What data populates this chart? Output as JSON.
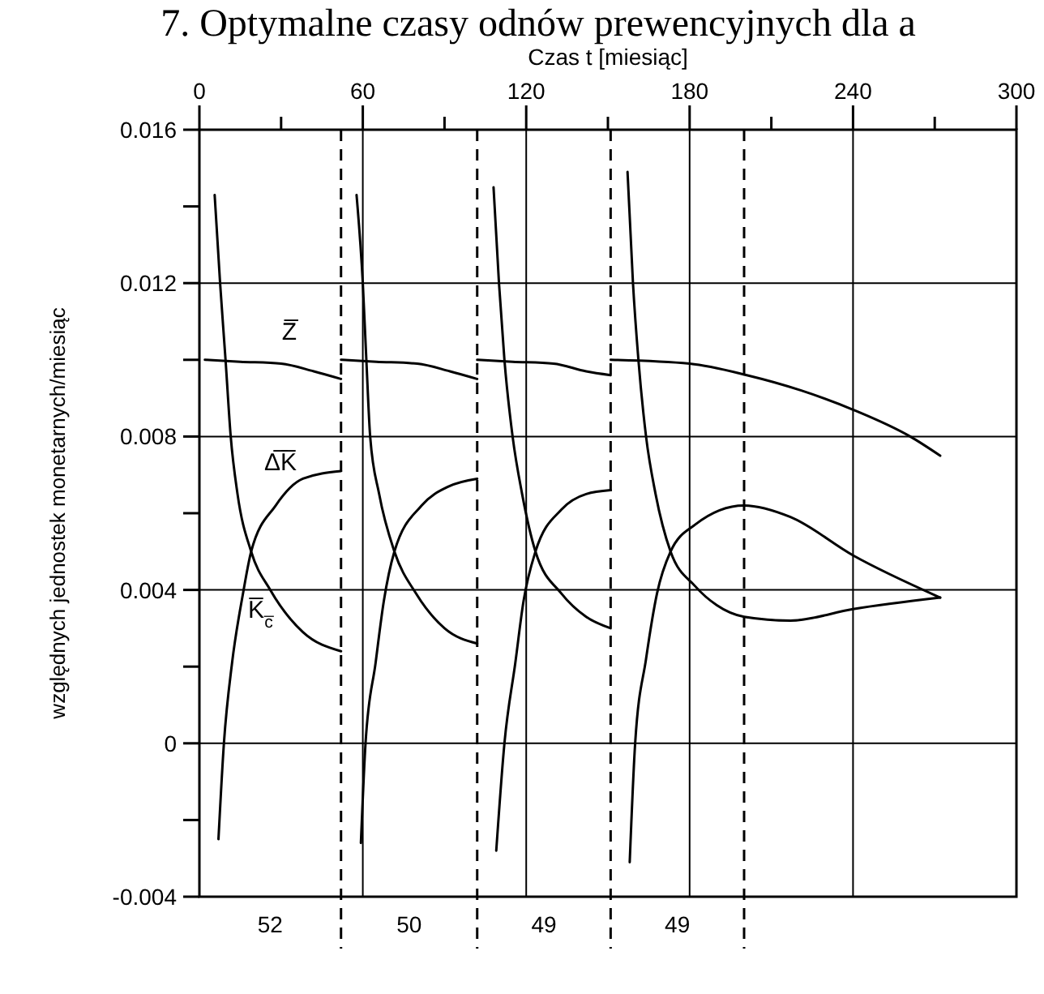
{
  "chart_data": {
    "type": "line",
    "title": "7. Optymalne czasy odnów prewencyjnych dla a",
    "xlabel": "Czas t [miesiąc]",
    "ylabel": "względnych jednostek monetarnych/miesiąc",
    "xlim": [
      0,
      300
    ],
    "xticks": [
      0,
      {
        "value": 30,
        "label": null
      },
      60,
      {
        "value": 90,
        "label": null
      },
      120,
      {
        "value": 150,
        "label": null
      },
      180,
      {
        "value": 210,
        "label": null
      },
      240,
      {
        "value": 270,
        "label": null
      },
      300
    ],
    "ylim": [
      -0.004,
      0.016
    ],
    "yticks": [
      -0.004,
      {
        "value": -0.002,
        "label": null
      },
      0,
      {
        "value": 0.002,
        "label": null
      },
      0.004,
      {
        "value": 0.006,
        "label": null
      },
      0.008,
      {
        "value": 0.01,
        "label": null
      },
      0.012,
      {
        "value": 0.014,
        "label": null
      },
      0.016
    ],
    "grid": true,
    "marker": "none",
    "line_style": "solid",
    "annotations": [
      "52",
      "50",
      "49",
      "49"
    ],
    "series": [
      {
        "name": "Z̅",
        "color": "#000000",
        "x": [
          2,
          15,
          30,
          42,
          52
        ],
        "values": [
          0.01,
          0.00995,
          0.0099,
          0.0097,
          0.0095
        ]
      },
      {
        "color": "#000000",
        "x": [
          52,
          65,
          80,
          92,
          102
        ],
        "values": [
          0.01,
          0.00995,
          0.0099,
          0.0097,
          0.0095
        ]
      },
      {
        "color": "#000000",
        "x": [
          102,
          115,
          130,
          142,
          151
        ],
        "values": [
          0.01,
          0.00995,
          0.0099,
          0.0097,
          0.0096
        ]
      },
      {
        "color": "#000000",
        "x": [
          151,
          180,
          201,
          221,
          240,
          261,
          272
        ],
        "values": [
          0.01,
          0.0099,
          0.0096,
          0.0092,
          0.0087,
          0.008,
          0.0075
        ]
      },
      {
        "name": "K̅$_{c̅}$",
        "color": "#000000",
        "x": [
          5.6,
          7.6,
          9.6,
          11.5,
          14,
          19,
          26,
          38,
          52
        ],
        "values": [
          0.0143,
          0.012,
          0.01,
          0.008,
          0.0065,
          0.005,
          0.004,
          0.0029,
          0.0024
        ]
      },
      {
        "color": "#000000",
        "x": [
          57.7,
          60,
          61.3,
          62.7,
          66,
          71.6,
          79.6,
          90,
          102
        ],
        "values": [
          0.0143,
          0.012,
          0.01,
          0.008,
          0.0065,
          0.005,
          0.0039,
          0.003,
          0.0026
        ]
      },
      {
        "color": "#000000",
        "x": [
          108,
          110,
          112,
          115,
          118.5,
          123.4,
          133,
          142,
          151
        ],
        "values": [
          0.0145,
          0.012,
          0.01,
          0.008,
          0.0065,
          0.005,
          0.0039,
          0.0033,
          0.003
        ]
      },
      {
        "color": "#000000",
        "x": [
          157.2,
          159.2,
          161.2,
          164,
          167.5,
          173,
          182,
          190,
          200,
          217,
          240,
          272
        ],
        "values": [
          0.0149,
          0.012,
          0.01,
          0.008,
          0.0065,
          0.005,
          0.0041,
          0.0036,
          0.0033,
          0.0032,
          0.0035,
          0.0038
        ]
      },
      {
        "name": "Δ̅K̅",
        "color": "#000000",
        "x": [
          7,
          9,
          12,
          16,
          19,
          28,
          38,
          52
        ],
        "values": [
          -0.0025,
          0.0,
          0.0021,
          0.0039,
          0.005,
          0.0062,
          0.0069,
          0.0071
        ]
      },
      {
        "color": "#000000",
        "x": [
          59.3,
          61,
          64.7,
          67.7,
          71.6,
          81.6,
          91.6,
          102
        ],
        "values": [
          -0.0026,
          0.0,
          0.0021,
          0.0037,
          0.005,
          0.0062,
          0.0067,
          0.0069
        ]
      },
      {
        "color": "#000000",
        "x": [
          109,
          112,
          116,
          119,
          123.4,
          133,
          142,
          151
        ],
        "values": [
          -0.0028,
          0.0,
          0.0021,
          0.0037,
          0.005,
          0.0061,
          0.0065,
          0.0066
        ]
      },
      {
        "color": "#000000",
        "x": [
          158,
          160,
          164,
          168,
          173,
          182,
          200,
          217,
          240,
          272
        ],
        "values": [
          -0.0031,
          0.0,
          0.0022,
          0.0039,
          0.005,
          0.0057,
          0.0062,
          0.0059,
          0.0049,
          0.0038
        ]
      }
    ],
    "ref_lines": [
      {
        "axis": "x",
        "value": 52,
        "color": "#000000",
        "line_style": "dashed"
      },
      {
        "axis": "x",
        "value": 102,
        "color": "#000000",
        "line_style": "dashed"
      },
      {
        "axis": "x",
        "value": 151,
        "color": "#000000",
        "line_style": "dashed"
      },
      {
        "axis": "x",
        "value": 200,
        "color": "#000000",
        "line_style": "dashed"
      }
    ]
  }
}
